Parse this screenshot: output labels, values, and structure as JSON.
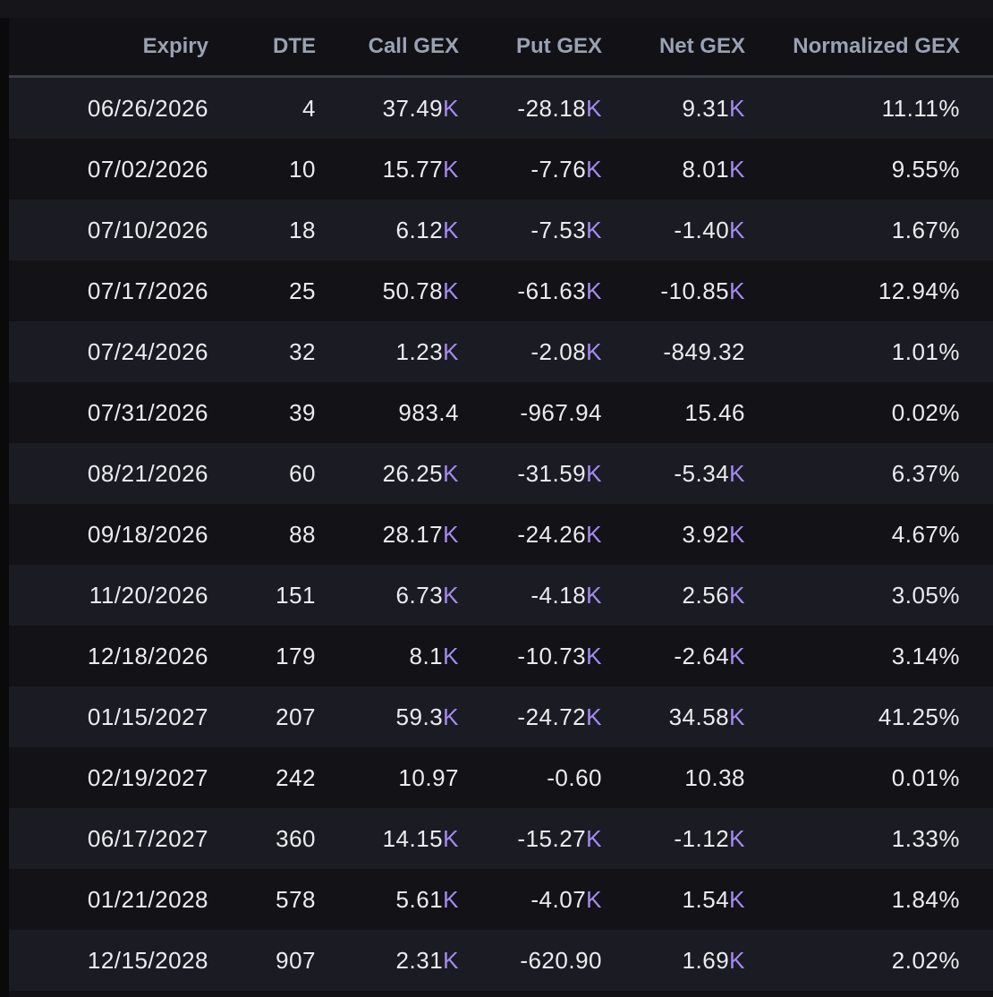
{
  "columns": {
    "expiry": "Expiry",
    "dte": "DTE",
    "call_gex": "Call GEX",
    "put_gex": "Put GEX",
    "net_gex": "Net GEX",
    "normalized_gex": "Normalized GEX"
  },
  "rows": [
    {
      "expiry": "06/26/2026",
      "dte": "4",
      "call": {
        "num": "37.49",
        "unit": "K"
      },
      "put": {
        "num": "-28.18",
        "unit": "K"
      },
      "net": {
        "num": "9.31",
        "unit": "K"
      },
      "norm": "11.11%",
      "trend": "pos"
    },
    {
      "expiry": "07/02/2026",
      "dte": "10",
      "call": {
        "num": "15.77",
        "unit": "K"
      },
      "put": {
        "num": "-7.76",
        "unit": "K"
      },
      "net": {
        "num": "8.01",
        "unit": "K"
      },
      "norm": "9.55%",
      "trend": "pos"
    },
    {
      "expiry": "07/10/2026",
      "dte": "18",
      "call": {
        "num": "6.12",
        "unit": "K"
      },
      "put": {
        "num": "-7.53",
        "unit": "K"
      },
      "net": {
        "num": "-1.40",
        "unit": "K"
      },
      "norm": "1.67%",
      "trend": "neg"
    },
    {
      "expiry": "07/17/2026",
      "dte": "25",
      "call": {
        "num": "50.78",
        "unit": "K"
      },
      "put": {
        "num": "-61.63",
        "unit": "K"
      },
      "net": {
        "num": "-10.85",
        "unit": "K"
      },
      "norm": "12.94%",
      "trend": "neg"
    },
    {
      "expiry": "07/24/2026",
      "dte": "32",
      "call": {
        "num": "1.23",
        "unit": "K"
      },
      "put": {
        "num": "-2.08",
        "unit": "K"
      },
      "net": {
        "num": "-849.32",
        "unit": ""
      },
      "norm": "1.01%",
      "trend": "neg"
    },
    {
      "expiry": "07/31/2026",
      "dte": "39",
      "call": {
        "num": "983.4",
        "unit": ""
      },
      "put": {
        "num": "-967.94",
        "unit": ""
      },
      "net": {
        "num": "15.46",
        "unit": ""
      },
      "norm": "0.02%",
      "trend": "pos"
    },
    {
      "expiry": "08/21/2026",
      "dte": "60",
      "call": {
        "num": "26.25",
        "unit": "K"
      },
      "put": {
        "num": "-31.59",
        "unit": "K"
      },
      "net": {
        "num": "-5.34",
        "unit": "K"
      },
      "norm": "6.37%",
      "trend": "neg"
    },
    {
      "expiry": "09/18/2026",
      "dte": "88",
      "call": {
        "num": "28.17",
        "unit": "K"
      },
      "put": {
        "num": "-24.26",
        "unit": "K"
      },
      "net": {
        "num": "3.92",
        "unit": "K"
      },
      "norm": "4.67%",
      "trend": "pos"
    },
    {
      "expiry": "11/20/2026",
      "dte": "151",
      "call": {
        "num": "6.73",
        "unit": "K"
      },
      "put": {
        "num": "-4.18",
        "unit": "K"
      },
      "net": {
        "num": "2.56",
        "unit": "K"
      },
      "norm": "3.05%",
      "trend": "pos"
    },
    {
      "expiry": "12/18/2026",
      "dte": "179",
      "call": {
        "num": "8.1",
        "unit": "K"
      },
      "put": {
        "num": "-10.73",
        "unit": "K"
      },
      "net": {
        "num": "-2.64",
        "unit": "K"
      },
      "norm": "3.14%",
      "trend": "neg"
    },
    {
      "expiry": "01/15/2027",
      "dte": "207",
      "call": {
        "num": "59.3",
        "unit": "K"
      },
      "put": {
        "num": "-24.72",
        "unit": "K"
      },
      "net": {
        "num": "34.58",
        "unit": "K"
      },
      "norm": "41.25%",
      "trend": "pos"
    },
    {
      "expiry": "02/19/2027",
      "dte": "242",
      "call": {
        "num": "10.97",
        "unit": ""
      },
      "put": {
        "num": "-0.60",
        "unit": ""
      },
      "net": {
        "num": "10.38",
        "unit": ""
      },
      "norm": "0.01%",
      "trend": "pos"
    },
    {
      "expiry": "06/17/2027",
      "dte": "360",
      "call": {
        "num": "14.15",
        "unit": "K"
      },
      "put": {
        "num": "-15.27",
        "unit": "K"
      },
      "net": {
        "num": "-1.12",
        "unit": "K"
      },
      "norm": "1.33%",
      "trend": "neg"
    },
    {
      "expiry": "01/21/2028",
      "dte": "578",
      "call": {
        "num": "5.61",
        "unit": "K"
      },
      "put": {
        "num": "-4.07",
        "unit": "K"
      },
      "net": {
        "num": "1.54",
        "unit": "K"
      },
      "norm": "1.84%",
      "trend": "pos"
    },
    {
      "expiry": "12/15/2028",
      "dte": "907",
      "call": {
        "num": "2.31",
        "unit": "K"
      },
      "put": {
        "num": "-620.90",
        "unit": ""
      },
      "net": {
        "num": "1.69",
        "unit": "K"
      },
      "norm": "2.02%",
      "trend": "pos"
    }
  ],
  "colors": {
    "background": "#111116",
    "row_alt": "#1b1c23",
    "header_text": "#9aa1b2",
    "unit_k": "#a58bf2",
    "positive": "#3fb38a",
    "negative": "#e0505f"
  }
}
